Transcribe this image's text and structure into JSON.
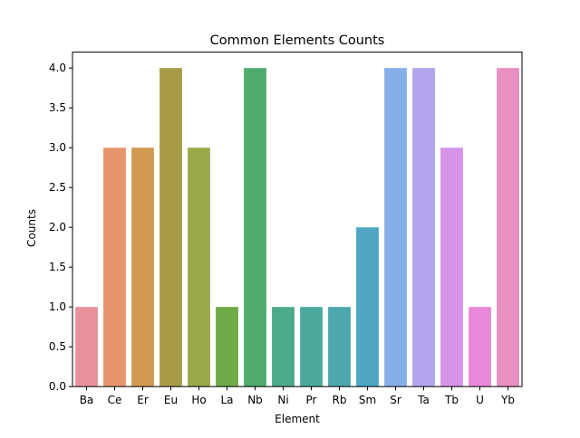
{
  "chart_data": {
    "type": "bar",
    "title": "Common Elements Counts",
    "xlabel": "Element",
    "ylabel": "Counts",
    "categories": [
      "Ba",
      "Ce",
      "Er",
      "Eu",
      "Ho",
      "La",
      "Nb",
      "Ni",
      "Pr",
      "Rb",
      "Sm",
      "Sr",
      "Ta",
      "Tb",
      "U",
      "Yb"
    ],
    "values": [
      1,
      3,
      3,
      4,
      3,
      1,
      4,
      1,
      1,
      1,
      2,
      4,
      4,
      3,
      1,
      4
    ],
    "colors": [
      "#e8919c",
      "#e8956f",
      "#cf9a50",
      "#a89c48",
      "#9aa848",
      "#6faa48",
      "#4fac6c",
      "#4caa8c",
      "#4aa99c",
      "#4ca8ac",
      "#4ea6c4",
      "#86aee8",
      "#b4a4ee",
      "#d693e8",
      "#e888d8",
      "#e890c0"
    ],
    "ylim": [
      0,
      4.0
    ],
    "yticks": [
      "0.0",
      "0.5",
      "1.0",
      "1.5",
      "2.0",
      "2.5",
      "3.0",
      "3.5",
      "4.0"
    ],
    "grid": false,
    "legend": "none"
  }
}
